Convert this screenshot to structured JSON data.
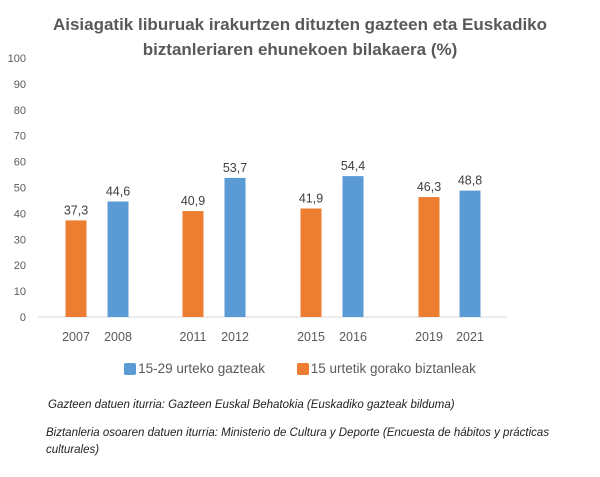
{
  "chart_data": {
    "type": "bar",
    "title": "Aisiagatik liburuak irakurtzen dituzten gazteen eta Euskadiko biztanleriaren ehunekoen bilakaera (%)",
    "categories": [
      "2007",
      "2008",
      "2011",
      "2012",
      "2015",
      "2016",
      "2019",
      "2021"
    ],
    "series": [
      {
        "name": "15-29 urteko gazteak",
        "color": "#5B9BD5",
        "values": [
          null,
          44.6,
          null,
          53.7,
          null,
          54.4,
          null,
          48.8
        ]
      },
      {
        "name": "15 urtetik gorako biztanleak",
        "color": "#ED7D31",
        "values": [
          37.3,
          null,
          40.9,
          null,
          41.9,
          null,
          46.3,
          null
        ]
      }
    ],
    "data_labels": [
      "37,3",
      "44,6",
      "40,9",
      "53,7",
      "41,9",
      "54,4",
      "46,3",
      "48,8"
    ],
    "ylim": [
      0,
      100
    ],
    "yticks": [
      "0",
      "10",
      "20",
      "30",
      "40",
      "50",
      "60",
      "70",
      "80",
      "90",
      "100"
    ],
    "grid": false,
    "legend": "bottom"
  },
  "sources": [
    "Gazteen datuen iturria: Gazteen Euskal Behatokia (Euskadiko gazteak bilduma)",
    "Biztanleria osoaren datuen iturria: Ministerio de Cultura y Deporte (Encuesta de hábitos y prácticas culturales)"
  ]
}
